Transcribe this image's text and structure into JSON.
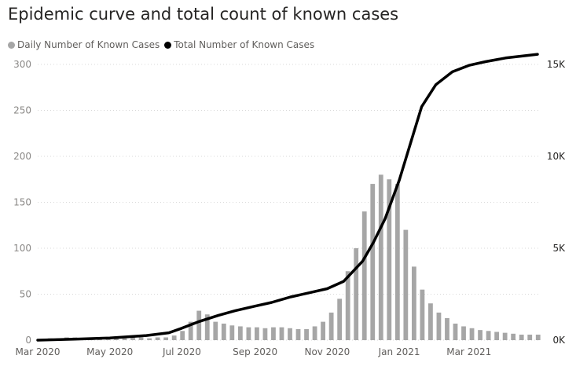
{
  "chart_data": {
    "type": "bar+line",
    "title": "Epidemic curve and total count of known cases",
    "legend_position": "top-left",
    "grid": true,
    "x_ticks": [
      "Mar 2020",
      "May 2020",
      "Jul 2020",
      "Sep 2020",
      "Nov 2020",
      "Jan 2021",
      "Mar 2021"
    ],
    "y_left_ticks": [
      "0",
      "50",
      "100",
      "150",
      "200",
      "250",
      "300"
    ],
    "y_left_range": [
      0,
      300
    ],
    "y_right_ticks": [
      "0K",
      "5K",
      "10K",
      "15K"
    ],
    "y_right_range": [
      0,
      15000
    ],
    "x_range": [
      "2020-03-01",
      "2021-04-30"
    ],
    "series": [
      {
        "name": "Daily Number of Known Cases",
        "type": "bar",
        "axis": "left",
        "color": "#a6a6a6",
        "date_start": "2020-03-01",
        "interval_days": 7,
        "values": [
          1,
          2,
          2,
          3,
          3,
          2,
          2,
          2,
          1,
          2,
          2,
          3,
          3,
          2,
          3,
          3,
          5,
          10,
          20,
          32,
          28,
          20,
          18,
          16,
          15,
          14,
          14,
          13,
          14,
          14,
          13,
          12,
          12,
          15,
          20,
          30,
          45,
          75,
          100,
          140,
          170,
          180,
          175,
          170,
          120,
          80,
          55,
          40,
          30,
          24,
          18,
          15,
          13,
          11,
          10,
          9,
          8,
          7,
          6,
          6,
          6,
          5
        ]
      },
      {
        "name": "Total Number of Known Cases",
        "type": "line",
        "axis": "right",
        "color": "#000000",
        "points": [
          [
            "2020-03-01",
            0
          ],
          [
            "2020-04-01",
            50
          ],
          [
            "2020-05-01",
            120
          ],
          [
            "2020-06-01",
            250
          ],
          [
            "2020-06-20",
            400
          ],
          [
            "2020-07-01",
            650
          ],
          [
            "2020-07-15",
            1000
          ],
          [
            "2020-08-01",
            1350
          ],
          [
            "2020-08-15",
            1600
          ],
          [
            "2020-09-01",
            1850
          ],
          [
            "2020-09-15",
            2050
          ],
          [
            "2020-10-01",
            2350
          ],
          [
            "2020-10-15",
            2550
          ],
          [
            "2020-11-01",
            2800
          ],
          [
            "2020-11-15",
            3200
          ],
          [
            "2020-12-01",
            4300
          ],
          [
            "2020-12-10",
            5300
          ],
          [
            "2020-12-20",
            6600
          ],
          [
            "2021-01-01",
            8700
          ],
          [
            "2021-01-10",
            10600
          ],
          [
            "2021-01-20",
            12700
          ],
          [
            "2021-02-01",
            13900
          ],
          [
            "2021-02-15",
            14600
          ],
          [
            "2021-03-01",
            14950
          ],
          [
            "2021-03-15",
            15150
          ],
          [
            "2021-04-01",
            15350
          ],
          [
            "2021-04-28",
            15550
          ]
        ]
      }
    ]
  }
}
